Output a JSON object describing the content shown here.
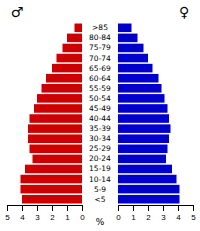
{
  "chart_data": {
    "type": "bar",
    "orientation": "horizontal",
    "categories": [
      "<5",
      "5-9",
      "10-14",
      "15-19",
      "20-24",
      "25-29",
      "30-34",
      "35-39",
      "40-44",
      "45-49",
      "50-54",
      "55-59",
      "60-64",
      "65-69",
      "70-74",
      "75-79",
      "80-84",
      ">85"
    ],
    "series": [
      {
        "name": "♂",
        "color": "#cc0000",
        "values": [
          4.0,
          4.1,
          4.1,
          3.8,
          3.3,
          3.5,
          3.6,
          3.6,
          3.5,
          3.2,
          3.0,
          2.7,
          2.4,
          2.0,
          1.7,
          1.3,
          1.0,
          0.5
        ]
      },
      {
        "name": "♀",
        "color": "#0000cc",
        "values": [
          4.1,
          4.1,
          3.9,
          3.6,
          3.2,
          3.3,
          3.4,
          3.5,
          3.4,
          3.3,
          3.1,
          2.9,
          2.7,
          2.3,
          2.0,
          1.7,
          1.3,
          0.9
        ]
      }
    ],
    "xlabel": "%",
    "xlim": [
      0,
      5
    ],
    "xticks": [
      0,
      1,
      2,
      3,
      4,
      5
    ],
    "grid": false
  }
}
